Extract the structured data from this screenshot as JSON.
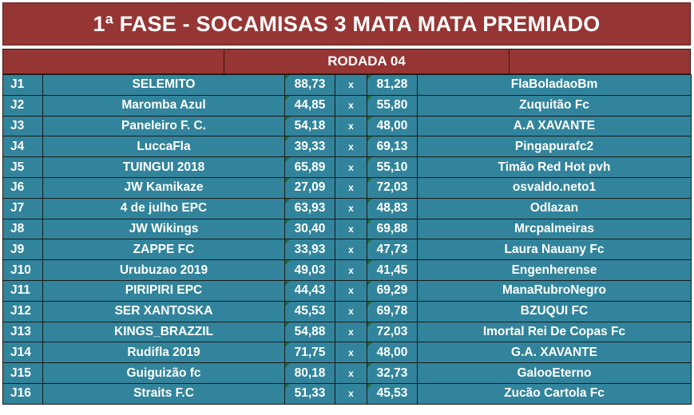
{
  "title": "1ª FASE - SOCAMISAS 3 MATA MATA PREMIADO",
  "round_label": "RODADA 04",
  "vs_symbol": "x",
  "colors": {
    "header": "#963634",
    "rows": "#31849b",
    "text": "#ffffff"
  },
  "matches": [
    {
      "id": "J1",
      "home": "SELEMITO",
      "home_score": "88,73",
      "away_score": "81,28",
      "away": "FlaBoladaoBm"
    },
    {
      "id": "J2",
      "home": "Maromba Azul",
      "home_score": "44,85",
      "away_score": "55,80",
      "away": "Zuquitão Fc"
    },
    {
      "id": "J3",
      "home": "Paneleiro F. C.",
      "home_score": "54,18",
      "away_score": "48,00",
      "away": "A.A XAVANTE"
    },
    {
      "id": "J4",
      "home": "LuccaFla",
      "home_score": "39,33",
      "away_score": "69,13",
      "away": "Pingapurafc2"
    },
    {
      "id": "J5",
      "home": "TUINGUI 2018",
      "home_score": "65,89",
      "away_score": "55,10",
      "away": "Timão Red Hot pvh"
    },
    {
      "id": "J6",
      "home": "JW Kamikaze",
      "home_score": "27,09",
      "away_score": "72,03",
      "away": "osvaldo.neto1"
    },
    {
      "id": "J7",
      "home": "4 de julho EPC",
      "home_score": "63,93",
      "away_score": "48,83",
      "away": "Odlazan"
    },
    {
      "id": "J8",
      "home": "JW Wikings",
      "home_score": "30,40",
      "away_score": "69,88",
      "away": "Mrcpalmeiras"
    },
    {
      "id": "J9",
      "home": "ZAPPE FC",
      "home_score": "33,93",
      "away_score": "47,73",
      "away": "Laura Nauany Fc"
    },
    {
      "id": "J10",
      "home": "Urubuzao 2019",
      "home_score": "49,03",
      "away_score": "41,45",
      "away": "Engenherense"
    },
    {
      "id": "J11",
      "home": "PIRIPIRI EPC",
      "home_score": "44,43",
      "away_score": "69,29",
      "away": "ManaRubroNegro"
    },
    {
      "id": "J12",
      "home": "SER XANTOSKA",
      "home_score": "45,53",
      "away_score": "69,78",
      "away": "BZUQUI FC"
    },
    {
      "id": "J13",
      "home": "KINGS_BRAZZIL",
      "home_score": "54,88",
      "away_score": "72,03",
      "away": "Imortal Rei De Copas Fc"
    },
    {
      "id": "J14",
      "home": "Rudifla 2019",
      "home_score": "71,75",
      "away_score": "48,00",
      "away": "G.A. XAVANTE"
    },
    {
      "id": "J15",
      "home": "Guiguizão fc",
      "home_score": "80,18",
      "away_score": "32,73",
      "away": "GalooEterno"
    },
    {
      "id": "J16",
      "home": "Straits F.C",
      "home_score": "51,33",
      "away_score": "45,53",
      "away": "Zucão Cartola Fc"
    }
  ]
}
